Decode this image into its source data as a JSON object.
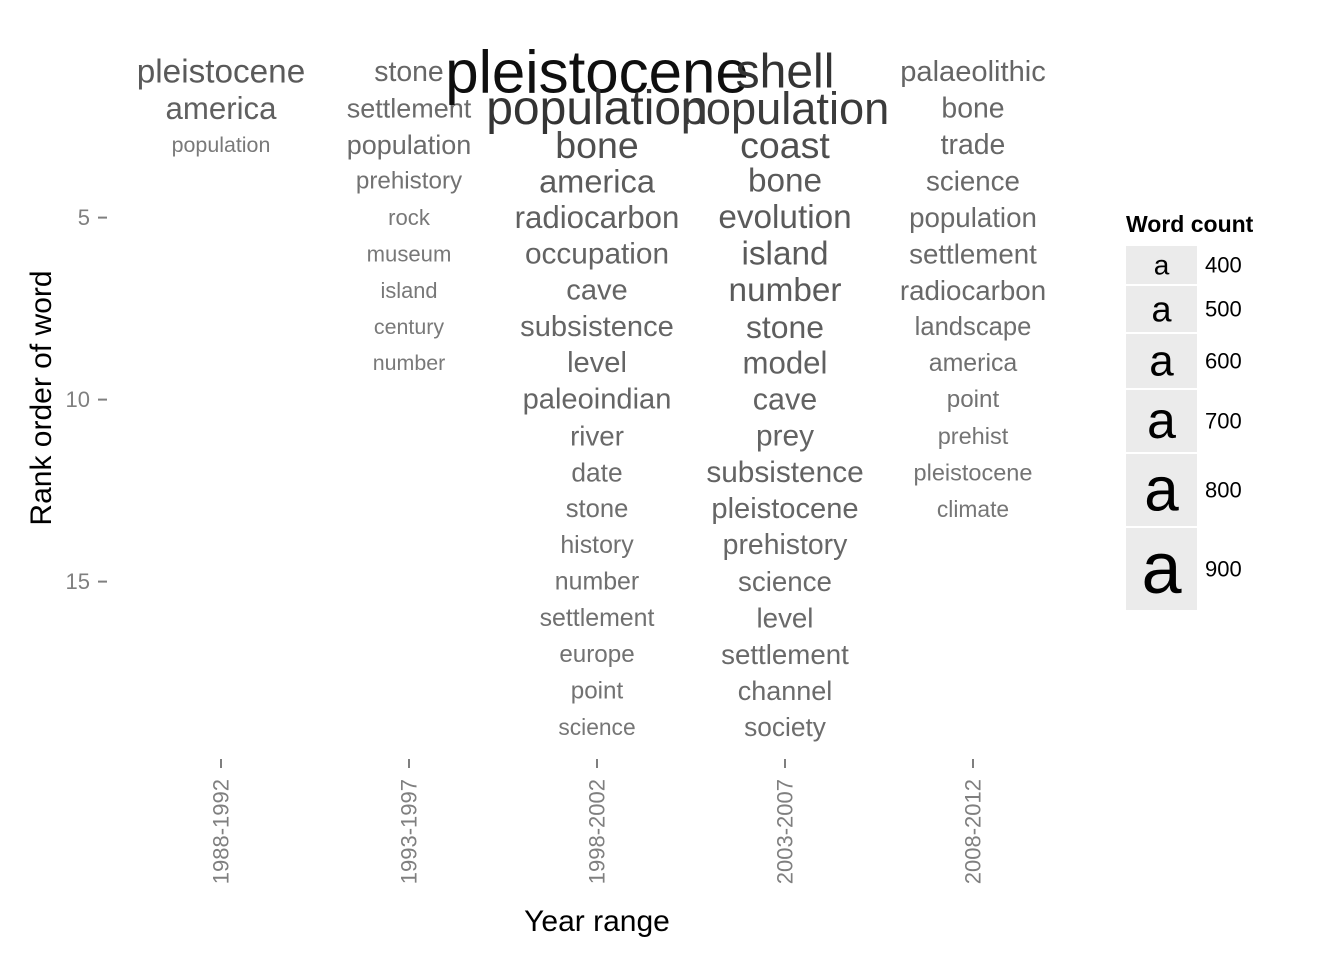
{
  "chart_data": {
    "type": "scatter",
    "xlabel": "Year range",
    "ylabel": "Rank order of word",
    "x_categories": [
      "1988-1992",
      "1993-1997",
      "1998-2002",
      "2003-2007",
      "2008-2012"
    ],
    "y_ticks": [
      5,
      10,
      15
    ],
    "y_range": [
      1,
      19
    ],
    "y_reversed": true,
    "grid": false,
    "legend_position": "right",
    "legend": {
      "title": "Word count",
      "glyph": "a",
      "values": [
        400,
        500,
        600,
        700,
        800,
        900
      ]
    },
    "series": [
      {
        "x": "1988-1992",
        "words": [
          {
            "word": "pleistocene",
            "rank": 1,
            "count": 590
          },
          {
            "word": "america",
            "rank": 2,
            "count": 560
          },
          {
            "word": "population",
            "rank": 3,
            "count": 420
          }
        ]
      },
      {
        "x": "1993-1997",
        "words": [
          {
            "word": "stone",
            "rank": 1,
            "count": 520
          },
          {
            "word": "settlement",
            "rank": 2,
            "count": 500
          },
          {
            "word": "population",
            "rank": 3,
            "count": 500
          },
          {
            "word": "prehistory",
            "rank": 4,
            "count": 460
          },
          {
            "word": "rock",
            "rank": 5,
            "count": 430
          },
          {
            "word": "museum",
            "rank": 6,
            "count": 430
          },
          {
            "word": "island",
            "rank": 7,
            "count": 425
          },
          {
            "word": "century",
            "rank": 8,
            "count": 420
          },
          {
            "word": "number",
            "rank": 9,
            "count": 420
          }
        ]
      },
      {
        "x": "1998-2002",
        "words": [
          {
            "word": "pleistocene",
            "rank": 1,
            "count": 1010
          },
          {
            "word": "population",
            "rank": 2,
            "count": 800
          },
          {
            "word": "bone",
            "rank": 3,
            "count": 650
          },
          {
            "word": "america",
            "rank": 4,
            "count": 580
          },
          {
            "word": "radiocarbon",
            "rank": 5,
            "count": 560
          },
          {
            "word": "occupation",
            "rank": 6,
            "count": 540
          },
          {
            "word": "cave",
            "rank": 7,
            "count": 530
          },
          {
            "word": "subsistence",
            "rank": 8,
            "count": 530
          },
          {
            "word": "level",
            "rank": 9,
            "count": 530
          },
          {
            "word": "paleoindian",
            "rank": 10,
            "count": 530
          },
          {
            "word": "river",
            "rank": 11,
            "count": 510
          },
          {
            "word": "date",
            "rank": 12,
            "count": 490
          },
          {
            "word": "stone",
            "rank": 13,
            "count": 480
          },
          {
            "word": "history",
            "rank": 14,
            "count": 470
          },
          {
            "word": "number",
            "rank": 15,
            "count": 470
          },
          {
            "word": "settlement",
            "rank": 16,
            "count": 470
          },
          {
            "word": "europe",
            "rank": 17,
            "count": 460
          },
          {
            "word": "point",
            "rank": 18,
            "count": 460
          },
          {
            "word": "science",
            "rank": 19,
            "count": 440
          }
        ]
      },
      {
        "x": "2003-2007",
        "words": [
          {
            "word": "shell",
            "rank": 1,
            "count": 800
          },
          {
            "word": "population",
            "rank": 2,
            "count": 760
          },
          {
            "word": "coast",
            "rank": 3,
            "count": 650
          },
          {
            "word": "bone",
            "rank": 4,
            "count": 590
          },
          {
            "word": "evolution",
            "rank": 5,
            "count": 590
          },
          {
            "word": "island",
            "rank": 6,
            "count": 590
          },
          {
            "word": "number",
            "rank": 7,
            "count": 590
          },
          {
            "word": "stone",
            "rank": 8,
            "count": 570
          },
          {
            "word": "model",
            "rank": 9,
            "count": 560
          },
          {
            "word": "cave",
            "rank": 10,
            "count": 550
          },
          {
            "word": "prey",
            "rank": 11,
            "count": 540
          },
          {
            "word": "subsistence",
            "rank": 12,
            "count": 540
          },
          {
            "word": "pleistocene",
            "rank": 13,
            "count": 530
          },
          {
            "word": "prehistory",
            "rank": 14,
            "count": 520
          },
          {
            "word": "science",
            "rank": 15,
            "count": 510
          },
          {
            "word": "level",
            "rank": 16,
            "count": 510
          },
          {
            "word": "settlement",
            "rank": 17,
            "count": 510
          },
          {
            "word": "channel",
            "rank": 18,
            "count": 500
          },
          {
            "word": "society",
            "rank": 19,
            "count": 490
          }
        ]
      },
      {
        "x": "2008-2012",
        "words": [
          {
            "word": "palaeolithic",
            "rank": 1,
            "count": 530
          },
          {
            "word": "bone",
            "rank": 2,
            "count": 520
          },
          {
            "word": "trade",
            "rank": 3,
            "count": 520
          },
          {
            "word": "science",
            "rank": 4,
            "count": 510
          },
          {
            "word": "population",
            "rank": 5,
            "count": 510
          },
          {
            "word": "settlement",
            "rank": 6,
            "count": 510
          },
          {
            "word": "radiocarbon",
            "rank": 7,
            "count": 510
          },
          {
            "word": "landscape",
            "rank": 8,
            "count": 480
          },
          {
            "word": "america",
            "rank": 9,
            "count": 470
          },
          {
            "word": "point",
            "rank": 10,
            "count": 460
          },
          {
            "word": "prehist",
            "rank": 11,
            "count": 450
          },
          {
            "word": "pleistocene",
            "rank": 12,
            "count": 450
          },
          {
            "word": "climate",
            "rank": 13,
            "count": 440
          }
        ]
      }
    ]
  }
}
